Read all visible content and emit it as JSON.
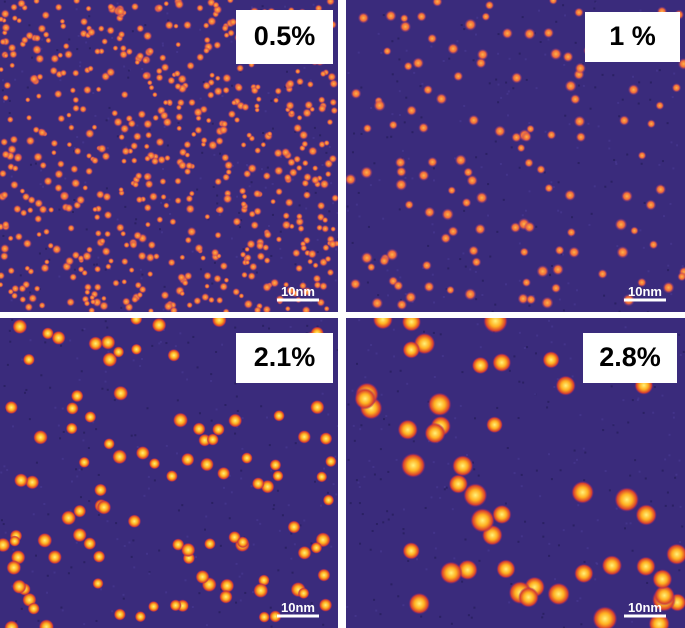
{
  "panels": [
    {
      "label": "0.5%",
      "scale_bar": "10nm"
    },
    {
      "label": "1 %",
      "scale_bar": "10nm"
    },
    {
      "label": "2.1%",
      "scale_bar": "10nm"
    },
    {
      "label": "2.8%",
      "scale_bar": "10nm"
    }
  ]
}
